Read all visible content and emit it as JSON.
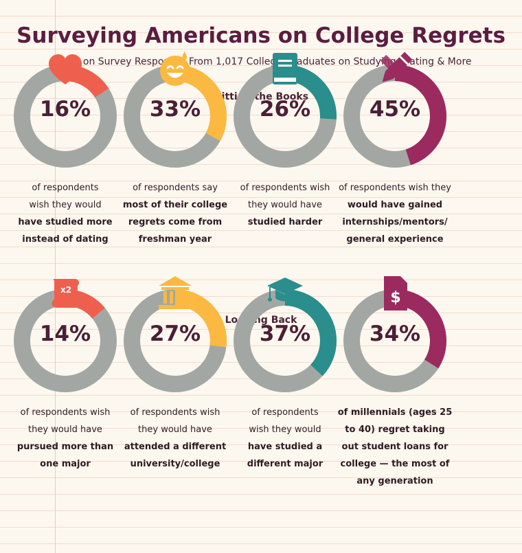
{
  "title": "Surveying Americans on College Regrets",
  "subtitle": "Based on Survey Responses From 1,017 College Graduates on Studying, Dating & More",
  "colors": {
    "track": "#a3a7a4",
    "red": "#ef5f4e",
    "yellow": "#fbb941",
    "teal": "#2a8e8c",
    "purple": "#9b2a5f"
  },
  "sections": [
    {
      "title": "Hitting the Books"
    },
    {
      "title": "Looking Back"
    }
  ],
  "stats": [
    {
      "label": "16%",
      "color": "#ef5f4e",
      "icon": "heart-icon",
      "desc": [
        [
          "of respondents",
          false
        ],
        [
          "wish they would",
          false
        ],
        [
          "have studied more",
          true
        ],
        [
          "instead of dating",
          true
        ]
      ]
    },
    {
      "label": "33%",
      "color": "#fbb941",
      "icon": "smiley-sweat-icon",
      "desc": [
        [
          "of respondents say",
          false
        ],
        [
          "most of their college",
          true
        ],
        [
          "regrets come from",
          true
        ],
        [
          "freshman year",
          true
        ]
      ]
    },
    {
      "label": "26%",
      "color": "#2a8e8c",
      "icon": "book-icon",
      "desc": [
        [
          "of respondents wish",
          false
        ],
        [
          "they would have",
          false
        ],
        [
          "studied harder",
          true
        ]
      ]
    },
    {
      "label": "45%",
      "color": "#9b2a5f",
      "icon": "pencil-icon",
      "desc": [
        [
          "of respondents wish they",
          false
        ],
        [
          "would have gained",
          true
        ],
        [
          "internships/mentors/",
          true
        ],
        [
          "general experience",
          true
        ]
      ]
    },
    {
      "label": "14%",
      "color": "#ef5f4e",
      "icon": "scroll-x2-icon",
      "desc": [
        [
          "of respondents wish",
          false
        ],
        [
          "they would have",
          false
        ],
        [
          "pursued more than",
          true
        ],
        [
          "one major",
          true
        ]
      ]
    },
    {
      "label": "27%",
      "color": "#fbb941",
      "icon": "university-building-icon",
      "desc": [
        [
          "of respondents wish",
          false
        ],
        [
          "they would have",
          false
        ],
        [
          "attended a different",
          true
        ],
        [
          "university/college",
          true
        ]
      ]
    },
    {
      "label": "37%",
      "color": "#2a8e8c",
      "icon": "graduation-cap-icon",
      "desc": [
        [
          "of respondents",
          false
        ],
        [
          "wish they would",
          false
        ],
        [
          "have studied a",
          true
        ],
        [
          "different major",
          true
        ]
      ]
    },
    {
      "label": "34%",
      "color": "#9b2a5f",
      "icon": "dollar-document-icon",
      "desc": [
        [
          "of millennials (ages 25",
          true
        ],
        [
          "to 40) regret taking",
          true
        ],
        [
          "out student loans for",
          true
        ],
        [
          "college — the most of",
          true
        ],
        [
          "any generation",
          true
        ]
      ]
    }
  ],
  "chart_data": {
    "type": "donut",
    "categories": [
      "have studied more instead of dating",
      "most of their college regrets come from freshman year",
      "studied harder",
      "gained internships/mentors/general experience",
      "pursued more than one major",
      "attended a different university/college",
      "studied a different major",
      "regret taking out student loans for college"
    ],
    "values": [
      16,
      33,
      26,
      45,
      14,
      27,
      37,
      34
    ],
    "unit": "%"
  }
}
